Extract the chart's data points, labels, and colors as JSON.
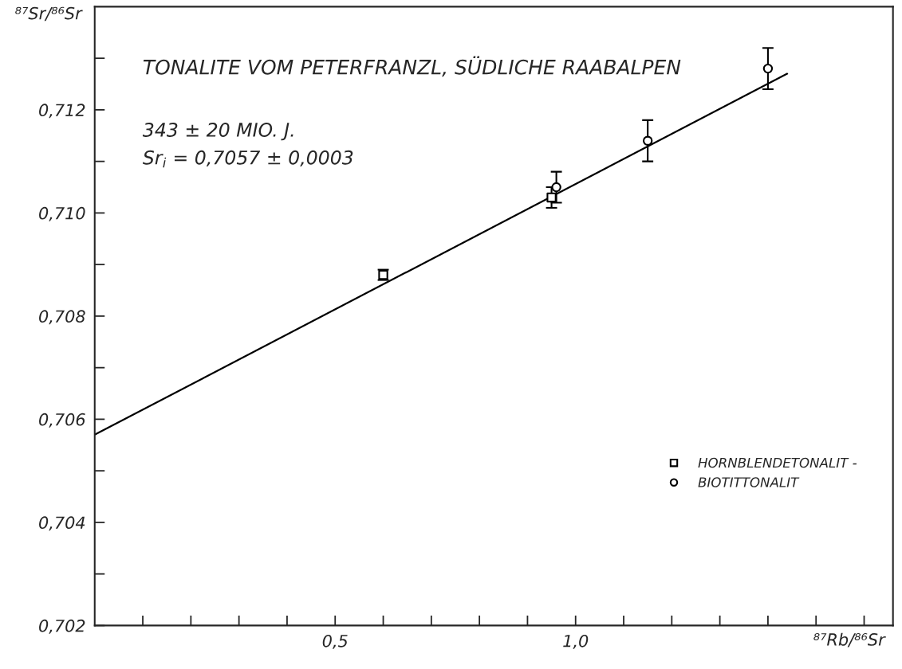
{
  "chart_data": {
    "type": "scatter",
    "title": "TONALITE VOM PETERFRANZL, SÜDLICHE RAABALPEN",
    "xlabel": "⁸⁷Rb/⁸⁶Sr",
    "ylabel": "⁸⁷Sr/⁸⁶Sr",
    "annotations": [
      "343 ± 20 MIO. J.",
      "Sr$_{i}$ = 0,7057 ± 0,0003"
    ],
    "xlim": [
      0,
      1.66
    ],
    "ylim": [
      0.702,
      0.714
    ],
    "xticks": [
      {
        "value": 0.1,
        "label": null
      },
      {
        "value": 0.2,
        "label": null
      },
      {
        "value": 0.3,
        "label": null
      },
      {
        "value": 0.4,
        "label": null
      },
      {
        "value": 0.5,
        "label": "0,5"
      },
      {
        "value": 0.6,
        "label": null
      },
      {
        "value": 0.7,
        "label": null
      },
      {
        "value": 0.8,
        "label": null
      },
      {
        "value": 0.9,
        "label": null
      },
      {
        "value": 1.0,
        "label": "1,0"
      },
      {
        "value": 1.1,
        "label": null
      },
      {
        "value": 1.2,
        "label": null
      },
      {
        "value": 1.3,
        "label": null
      },
      {
        "value": 1.4,
        "label": null
      },
      {
        "value": 1.5,
        "label": null
      },
      {
        "value": 1.6,
        "label": null
      }
    ],
    "yticks": [
      {
        "value": 0.702,
        "label": "0,702"
      },
      {
        "value": 0.703,
        "label": null
      },
      {
        "value": 0.704,
        "label": "0,704"
      },
      {
        "value": 0.705,
        "label": null
      },
      {
        "value": 0.706,
        "label": "0,706"
      },
      {
        "value": 0.707,
        "label": null
      },
      {
        "value": 0.708,
        "label": "0,708"
      },
      {
        "value": 0.709,
        "label": null
      },
      {
        "value": 0.71,
        "label": "0,710"
      },
      {
        "value": 0.711,
        "label": null
      },
      {
        "value": 0.712,
        "label": "0,712"
      },
      {
        "value": 0.713,
        "label": null
      }
    ],
    "grid": false,
    "legend": "bottom right",
    "series": [
      {
        "name": "HORNBLENDETONALIT -",
        "marker": "square",
        "color": "#000000",
        "x": [
          0.6,
          0.95
        ],
        "values": [
          0.7088,
          0.7103
        ],
        "errors": [
          0.0001,
          0.0002
        ]
      },
      {
        "name": "BIOTITTONALIT",
        "marker": "circle",
        "color": "#000000",
        "x": [
          0.96,
          1.15,
          1.4
        ],
        "values": [
          0.7105,
          0.7114,
          0.7128
        ],
        "errors": [
          0.0003,
          0.0004,
          0.0004
        ]
      },
      {
        "type": "line",
        "color": "#000000",
        "x": [
          0,
          1.44
        ],
        "values": [
          0.7057,
          0.7127
        ]
      }
    ]
  }
}
